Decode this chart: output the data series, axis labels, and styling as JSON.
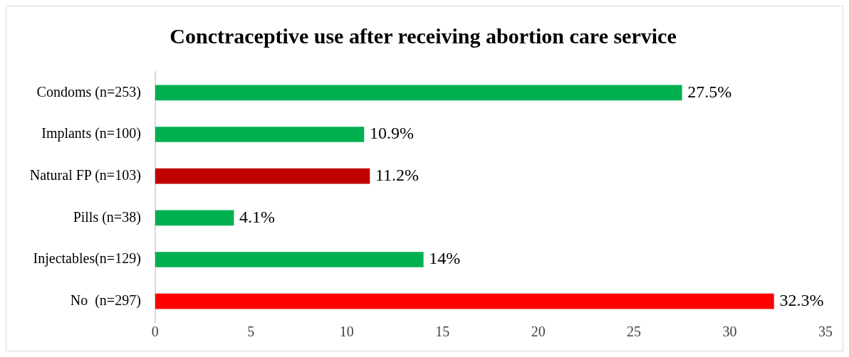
{
  "chart_data": {
    "type": "bar",
    "orientation": "horizontal",
    "title": "Conctraceptive use after receiving abortion care service",
    "categories": [
      "Condoms (n=253)",
      "Implants (n=100)",
      "Natural FP (n=103)",
      "Pills (n=38)",
      "Injectables(n=129)",
      "No  (n=297)"
    ],
    "values": [
      27.5,
      10.9,
      11.2,
      4.1,
      14,
      32.3
    ],
    "colors": [
      "#00b050",
      "#00b050",
      "#c00000",
      "#00b050",
      "#00b050",
      "#ff0000"
    ],
    "value_labels": [
      "27.5%",
      "10.9%",
      "11.2%",
      "4.1%",
      "14%",
      "32.3%"
    ],
    "xlim": [
      0,
      35
    ],
    "xticks": [
      0,
      5,
      10,
      15,
      20,
      25,
      30,
      35
    ],
    "grid": false,
    "legend": false
  }
}
